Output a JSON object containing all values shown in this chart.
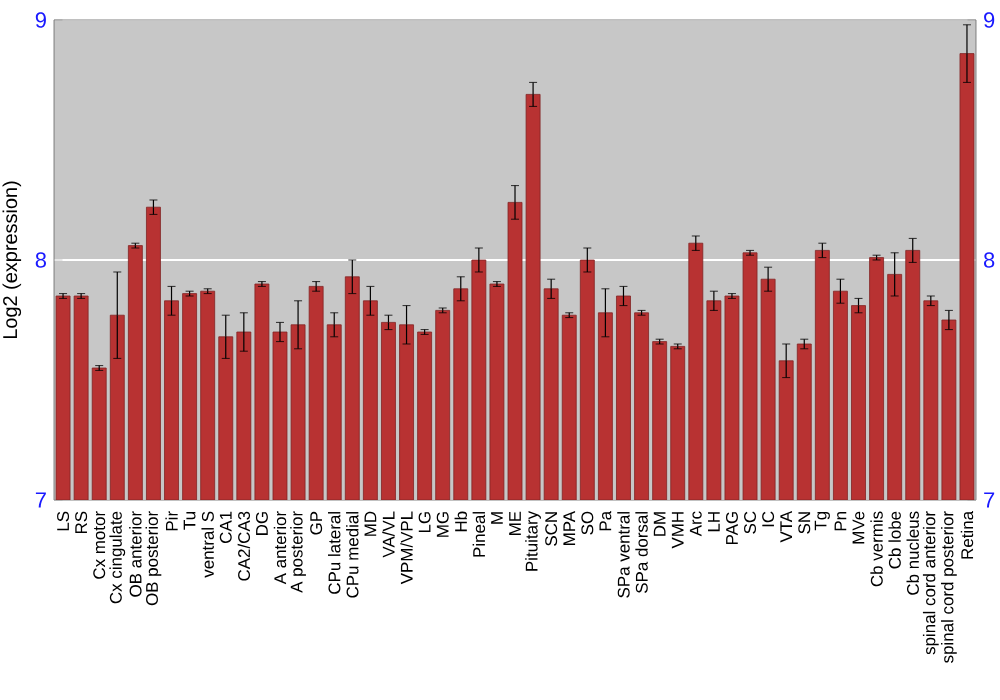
{
  "chart_data": {
    "type": "bar",
    "ylabel": "Log2 (expression)",
    "categories": [
      "LS",
      "RS",
      "Cx motor",
      "Cx cingulate",
      "OB anterior",
      "OB posterior",
      "Pir",
      "Tu",
      "ventral S",
      "CA1",
      "CA2/CA3",
      "DG",
      "A anterior",
      "A posterior",
      "GP",
      "CPu lateral",
      "CPu medial",
      "MD",
      "VA/VL",
      "VPM/VPL",
      "LG",
      "MG",
      "Hb",
      "Pineal",
      "M",
      "ME",
      "Pituitary",
      "SCN",
      "MPA",
      "SO",
      "Pa",
      "SPa ventral",
      "SPa dorsal",
      "DM",
      "VMH",
      "Arc",
      "LH",
      "PAG",
      "SC",
      "IC",
      "VTA",
      "SN",
      "Tg",
      "Pn",
      "MVe",
      "Cb vermis",
      "Cb lobe",
      "Cb nucleus",
      "spinal cord anterior",
      "spinal cord posterior",
      "Retina"
    ],
    "values": [
      7.85,
      7.85,
      7.55,
      7.77,
      8.06,
      8.22,
      7.83,
      7.86,
      7.87,
      7.68,
      7.7,
      7.9,
      7.7,
      7.73,
      7.89,
      7.73,
      7.93,
      7.83,
      7.74,
      7.73,
      7.7,
      7.79,
      7.88,
      8.0,
      7.9,
      8.24,
      8.69,
      7.88,
      7.77,
      8.0,
      7.78,
      7.85,
      7.78,
      7.66,
      7.64,
      8.07,
      7.83,
      7.85,
      8.03,
      7.92,
      7.58,
      7.65,
      8.04,
      7.87,
      7.81,
      8.01,
      7.94,
      8.04,
      7.83,
      7.75,
      8.86
    ],
    "errors": [
      0.01,
      0.01,
      0.01,
      0.18,
      0.01,
      0.03,
      0.06,
      0.01,
      0.01,
      0.09,
      0.08,
      0.01,
      0.04,
      0.1,
      0.02,
      0.05,
      0.07,
      0.06,
      0.03,
      0.08,
      0.01,
      0.01,
      0.05,
      0.05,
      0.01,
      0.07,
      0.05,
      0.04,
      0.01,
      0.05,
      0.1,
      0.04,
      0.01,
      0.01,
      0.01,
      0.03,
      0.04,
      0.01,
      0.01,
      0.05,
      0.07,
      0.02,
      0.03,
      0.05,
      0.03,
      0.01,
      0.09,
      0.05,
      0.02,
      0.04,
      0.12
    ],
    "color": "#b83232",
    "ylim": [
      7,
      9
    ],
    "yticks": [
      7,
      8,
      9
    ],
    "y2lim": [
      7,
      9
    ],
    "y2ticks": [
      7,
      8,
      9
    ],
    "grid": "y"
  }
}
